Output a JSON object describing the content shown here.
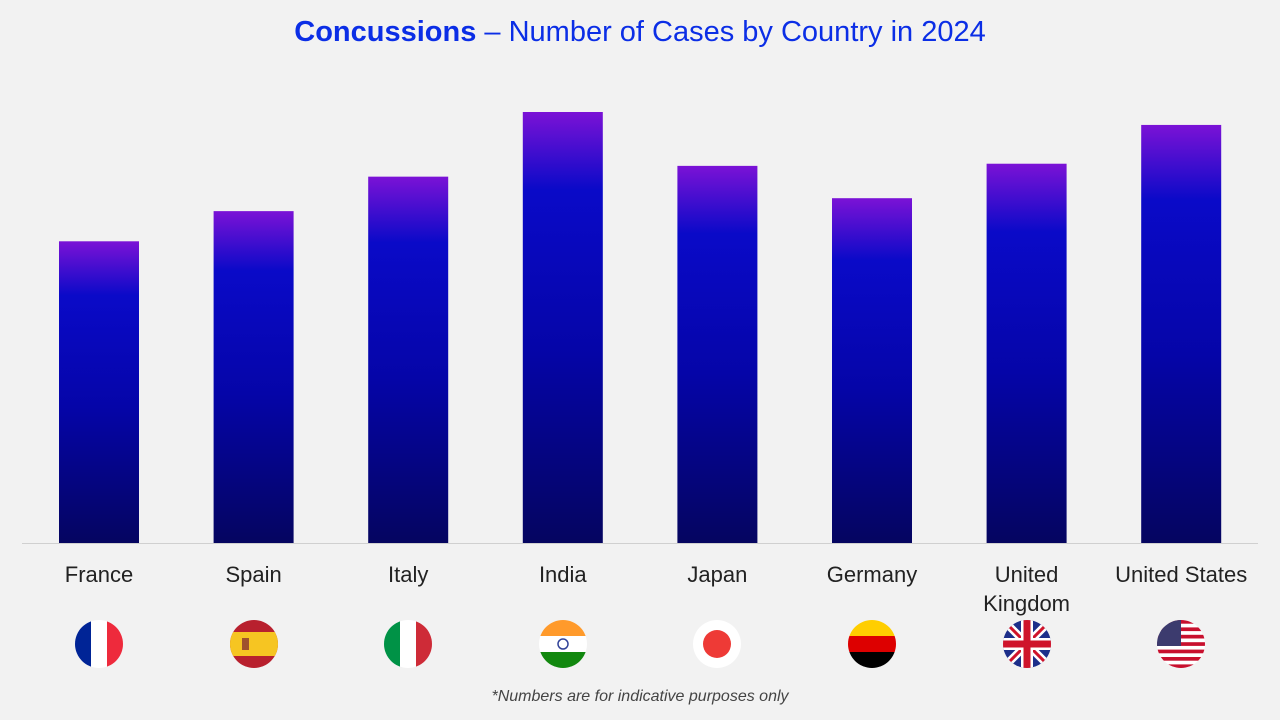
{
  "chart_data": {
    "type": "bar",
    "title_bold": "Concussions",
    "title_rest": " – Number of Cases by Country in 2024",
    "categories": [
      "France",
      "Spain",
      "Italy",
      "India",
      "Japan",
      "Germany",
      "United Kingdom",
      "United States"
    ],
    "values": [
      70,
      77,
      85,
      100,
      87.5,
      80,
      88,
      97
    ],
    "value_note": "relative bar heights (no value axis shown); India = 100",
    "ylim": [
      0,
      100
    ],
    "grid": false,
    "bar_gradient": [
      "#7b12d6",
      "#0a0ac8",
      "#050560"
    ],
    "footnote": "*Numbers are for indicative purposes only"
  }
}
